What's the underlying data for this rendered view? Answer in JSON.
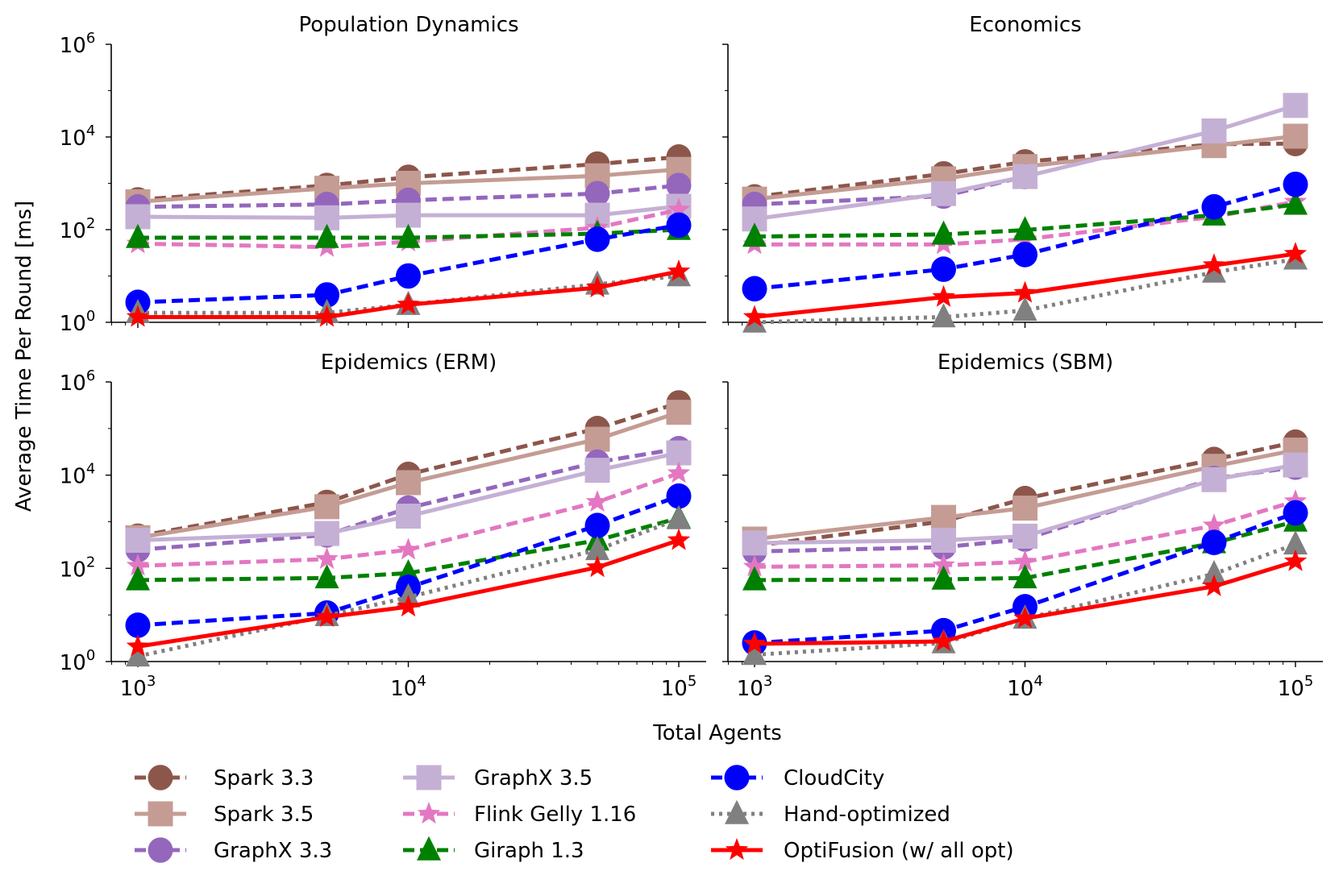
{
  "chart_data": {
    "type": "line",
    "xlabel": "Total Agents",
    "ylabel": "Average Time Per Round [ms]",
    "xscale": "log",
    "yscale": "log",
    "x": [
      1000,
      5000,
      10000,
      50000,
      100000
    ],
    "xlim": [
      800,
      130000
    ],
    "ylim": [
      1,
      1000000
    ],
    "x_ticks": [
      {
        "value": 1000,
        "base": "10",
        "exp": "3"
      },
      {
        "value": 10000,
        "base": "10",
        "exp": "4"
      },
      {
        "value": 100000,
        "base": "10",
        "exp": "5"
      }
    ],
    "y_ticks": [
      {
        "value": 1,
        "base": "10",
        "exp": "0"
      },
      {
        "value": 100,
        "base": "10",
        "exp": "2"
      },
      {
        "value": 10000,
        "base": "10",
        "exp": "4"
      },
      {
        "value": 1000000,
        "base": "10",
        "exp": "6"
      }
    ],
    "grid": false,
    "legend_position": "bottom",
    "series_styles": [
      {
        "name": "Spark 3.3",
        "color": "#8c564b",
        "marker": "circle",
        "linestyle": "dashed"
      },
      {
        "name": "Spark 3.5",
        "color": "#c49c94",
        "marker": "square",
        "linestyle": "solid"
      },
      {
        "name": "GraphX 3.3",
        "color": "#9467bd",
        "marker": "circle",
        "linestyle": "dashed"
      },
      {
        "name": "GraphX 3.5",
        "color": "#c5b0d5",
        "marker": "square",
        "linestyle": "solid"
      },
      {
        "name": "Flink Gelly 1.16",
        "color": "#e377c2",
        "marker": "star",
        "linestyle": "dashed"
      },
      {
        "name": "Giraph 1.3",
        "color": "#008000",
        "marker": "triangle",
        "linestyle": "dashed"
      },
      {
        "name": "CloudCity",
        "color": "#0000ff",
        "marker": "circle",
        "linestyle": "dashed"
      },
      {
        "name": "Hand-optimized",
        "color": "#808080",
        "marker": "triangle",
        "linestyle": "dotted"
      },
      {
        "name": "OptiFusion (w/ all opt)",
        "color": "#ff0000",
        "marker": "star",
        "linestyle": "solid"
      }
    ],
    "panels": [
      {
        "title": "Population Dynamics",
        "series": [
          {
            "name": "Spark 3.3",
            "values": [
              440,
              900,
              1350,
              2600,
              3700
            ]
          },
          {
            "name": "Spark 3.5",
            "values": [
              400,
              780,
              1000,
              1450,
              2000
            ]
          },
          {
            "name": "GraphX 3.3",
            "values": [
              310,
              350,
              430,
              600,
              900
            ]
          },
          {
            "name": "GraphX 3.5",
            "values": [
              190,
              180,
              205,
              205,
              320
            ]
          },
          {
            "name": "Flink Gelly 1.16",
            "values": [
              50,
              42,
              55,
              110,
              270
            ]
          },
          {
            "name": "Giraph 1.3",
            "values": [
              67,
              67,
              67,
              82,
              100
            ]
          },
          {
            "name": "CloudCity",
            "values": [
              2.7,
              3.9,
              10,
              62,
              125
            ]
          },
          {
            "name": "Hand-optimized",
            "values": [
              1.6,
              1.6,
              2.4,
              6.6,
              10
            ]
          },
          {
            "name": "OptiFusion (w/ all opt)",
            "values": [
              1.3,
              1.3,
              2.4,
              5.6,
              12.5
            ]
          }
        ]
      },
      {
        "title": "Economics",
        "series": [
          {
            "name": "Spark 3.3",
            "values": [
              510,
              1600,
              2900,
              7000,
              7200
            ]
          },
          {
            "name": "Spark 3.5",
            "values": [
              455,
              1250,
              2300,
              6500,
              10400
            ]
          },
          {
            "name": "GraphX 3.3",
            "values": [
              350,
              530,
              1400,
              null,
              null
            ]
          },
          {
            "name": "GraphX 3.5",
            "values": [
              170,
              600,
              1400,
              13500,
              48000
            ]
          },
          {
            "name": "Flink Gelly 1.16",
            "values": [
              48,
              48,
              62,
              190,
              400
            ]
          },
          {
            "name": "Giraph 1.3",
            "values": [
              71,
              79,
              98,
              205,
              350
            ]
          },
          {
            "name": "CloudCity",
            "values": [
              5.3,
              14,
              29,
              310,
              950
            ]
          },
          {
            "name": "Hand-optimized",
            "values": [
              1.0,
              1.3,
              1.8,
              12,
              23
            ]
          },
          {
            "name": "OptiFusion (w/ all opt)",
            "values": [
              1.3,
              3.5,
              4.3,
              17,
              30
            ]
          }
        ]
      },
      {
        "title": "Epidemics (ERM)",
        "series": [
          {
            "name": "Spark 3.3",
            "values": [
              490,
              2600,
              10400,
              100000,
              355000
            ]
          },
          {
            "name": "Spark 3.5",
            "values": [
              455,
              2100,
              6900,
              59000,
              223000
            ]
          },
          {
            "name": "GraphX 3.3",
            "values": [
              250,
              520,
              1970,
              19000,
              37000
            ]
          },
          {
            "name": "GraphX 3.5",
            "values": [
              400,
              560,
              1320,
              12700,
              30000
            ]
          },
          {
            "name": "Flink Gelly 1.16",
            "values": [
              113,
              158,
              250,
              2650,
              11000
            ]
          },
          {
            "name": "Giraph 1.3",
            "values": [
              56,
              62,
              79,
              400,
              1200
            ]
          },
          {
            "name": "CloudCity",
            "values": [
              6,
              11,
              39,
              830,
              3550
            ]
          },
          {
            "name": "Hand-optimized",
            "values": [
              1.3,
              9.6,
              24,
              250,
              1150
            ]
          },
          {
            "name": "OptiFusion (w/ all opt)",
            "values": [
              2.1,
              9,
              15,
              105,
              400
            ]
          }
        ]
      },
      {
        "title": "Epidemics (SBM)",
        "series": [
          {
            "name": "Spark 3.3",
            "values": [
              305,
              1020,
              3150,
              21700,
              51000
            ]
          },
          {
            "name": "Spark 3.5",
            "values": [
              425,
              1240,
              1960,
              15500,
              34500
            ]
          },
          {
            "name": "GraphX 3.3",
            "values": [
              230,
              285,
              425,
              8500,
              14800
            ]
          },
          {
            "name": "GraphX 3.5",
            "values": [
              350,
              400,
              490,
              8000,
              16500
            ]
          },
          {
            "name": "Flink Gelly 1.16",
            "values": [
              108,
              116,
              138,
              830,
              2750
            ]
          },
          {
            "name": "Giraph 1.3",
            "values": [
              56,
              58,
              62,
              350,
              1020
            ]
          },
          {
            "name": "CloudCity",
            "values": [
              2.5,
              4.6,
              15,
              360,
              1550
            ]
          },
          {
            "name": "Hand-optimized",
            "values": [
              1.4,
              2.5,
              8.4,
              76,
              330
            ]
          },
          {
            "name": "OptiFusion (w/ all opt)",
            "values": [
              2.4,
              2.7,
              8.4,
              41,
              141
            ]
          }
        ]
      }
    ]
  }
}
